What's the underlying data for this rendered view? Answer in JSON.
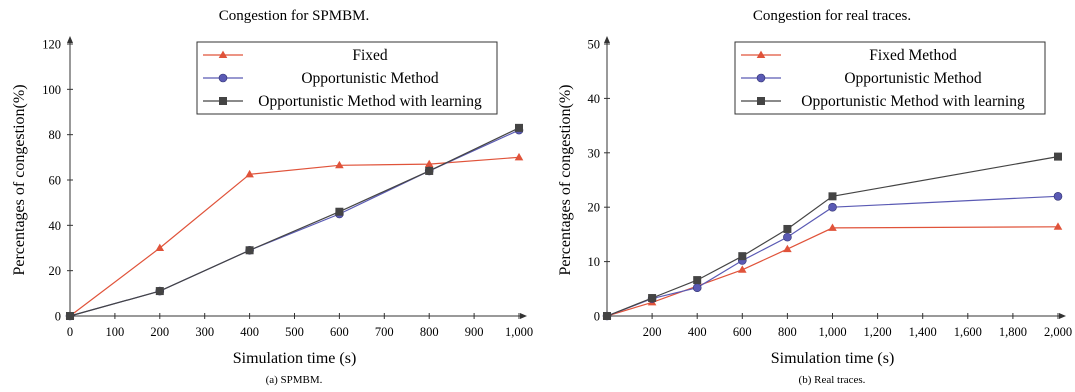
{
  "chart_data": [
    {
      "type": "line",
      "title": "Congestion for SPMBM.",
      "caption": "(a) SPMBM.",
      "xlabel": "Simulation time (s)",
      "ylabel": "Percentages of congestion(%)",
      "xlim": [
        0,
        1000
      ],
      "ylim": [
        0,
        120
      ],
      "x_ticks": [
        0,
        100,
        200,
        300,
        400,
        500,
        600,
        700,
        800,
        900,
        1000
      ],
      "x_tick_labels": [
        "0",
        "100",
        "200",
        "300",
        "400",
        "500",
        "600",
        "700",
        "800",
        "900",
        "1,000"
      ],
      "y_ticks": [
        0,
        20,
        40,
        60,
        80,
        100,
        120
      ],
      "y_tick_labels": [
        "0",
        "20",
        "40",
        "60",
        "80",
        "100",
        "120"
      ],
      "grid": false,
      "legend_position": "top-right",
      "series": [
        {
          "name": "Fixed",
          "color": "#e0533a",
          "marker": "triangle",
          "x": [
            0,
            200,
            400,
            600,
            800,
            1000
          ],
          "y": [
            0,
            30,
            62.5,
            66.5,
            67,
            70
          ]
        },
        {
          "name": "Opportunistic Method",
          "color": "#5a5ab4",
          "marker": "circle",
          "x": [
            0,
            200,
            400,
            600,
            800,
            1000
          ],
          "y": [
            0,
            11,
            29,
            45,
            64,
            82
          ]
        },
        {
          "name": "Opportunistic Method with learning",
          "color": "#444444",
          "marker": "square",
          "x": [
            0,
            200,
            400,
            600,
            800,
            1000
          ],
          "y": [
            0,
            11,
            29,
            46,
            64,
            83
          ]
        }
      ]
    },
    {
      "type": "line",
      "title": "Congestion for real traces.",
      "caption": "(b) Real traces.",
      "xlabel": "Simulation time (s)",
      "ylabel": "Percentages of congestion(%)",
      "xlim": [
        0,
        2000
      ],
      "ylim": [
        0,
        50
      ],
      "x_ticks": [
        200,
        400,
        600,
        800,
        1000,
        1200,
        1400,
        1600,
        1800,
        2000
      ],
      "x_tick_labels": [
        "200",
        "400",
        "600",
        "800",
        "1,000",
        "1,200",
        "1,400",
        "1,600",
        "1,800",
        "2,000"
      ],
      "y_ticks": [
        0,
        10,
        20,
        30,
        40,
        50
      ],
      "y_tick_labels": [
        "0",
        "10",
        "20",
        "30",
        "40",
        "50"
      ],
      "grid": false,
      "legend_position": "top-right",
      "series": [
        {
          "name": "Fixed Method",
          "color": "#e0533a",
          "marker": "triangle",
          "x": [
            0,
            200,
            400,
            600,
            800,
            1000,
            2000
          ],
          "y": [
            0,
            2.5,
            5.5,
            8.5,
            12.3,
            16.2,
            16.4
          ]
        },
        {
          "name": "Opportunistic Method",
          "color": "#5a5ab4",
          "marker": "circle",
          "x": [
            0,
            200,
            400,
            600,
            800,
            1000,
            2000
          ],
          "y": [
            0,
            3.2,
            5.2,
            10.2,
            14.5,
            20,
            22
          ]
        },
        {
          "name": "Opportunistic Method with learning",
          "color": "#444444",
          "marker": "square",
          "x": [
            0,
            200,
            400,
            600,
            800,
            1000,
            2000
          ],
          "y": [
            0,
            3.3,
            6.6,
            11,
            16,
            22,
            29.3
          ]
        }
      ]
    }
  ]
}
